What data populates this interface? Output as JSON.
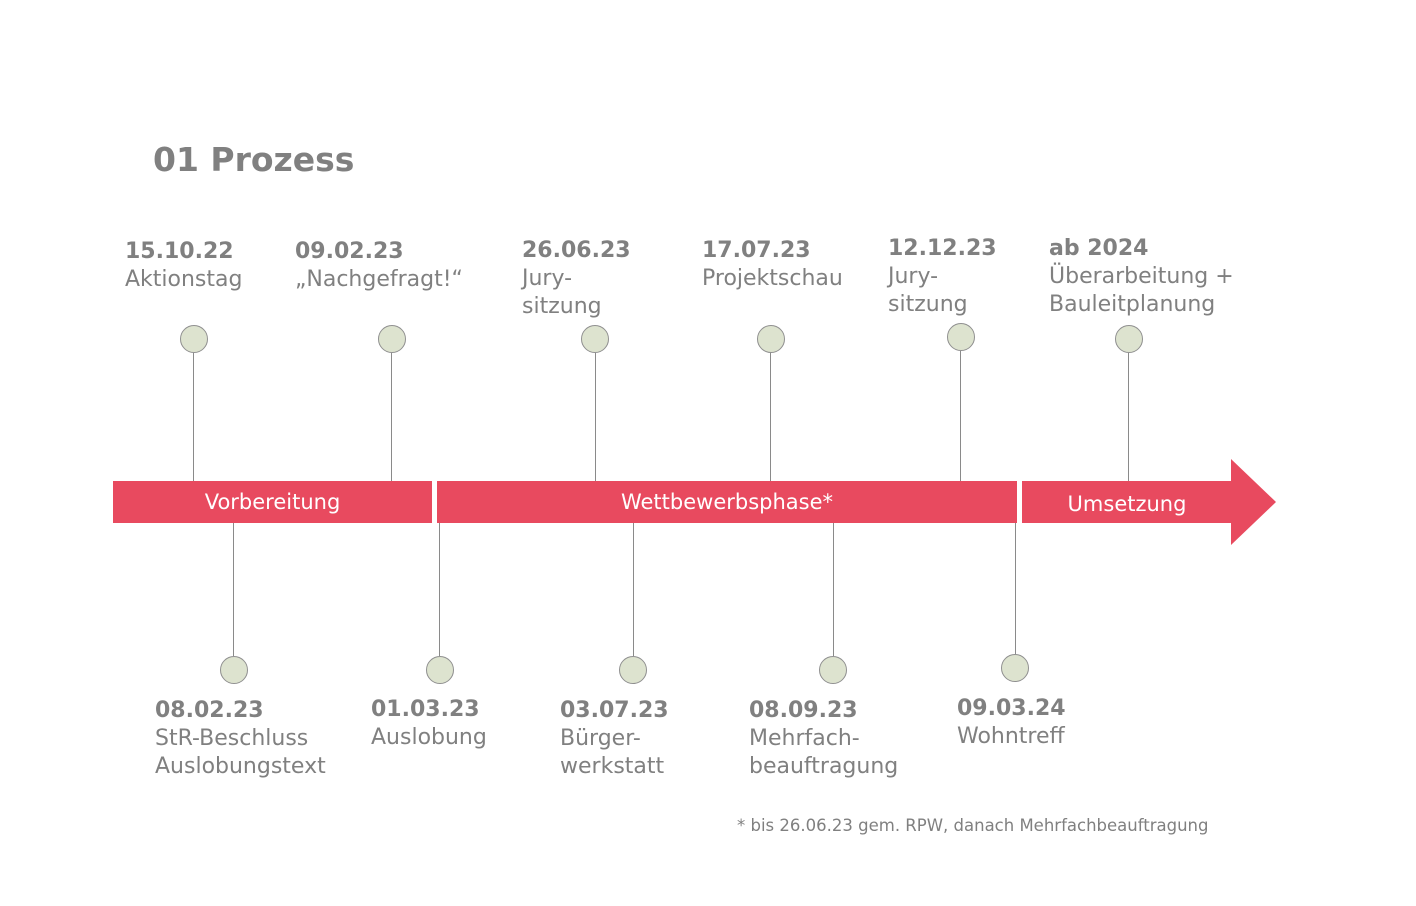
{
  "title": "01 Prozess",
  "phases": [
    {
      "label": "Vorbereitung"
    },
    {
      "label": "Wettbewerbsphase*"
    },
    {
      "label": "Umsetzung"
    }
  ],
  "milestones_top": [
    {
      "date": "15.10.22",
      "text": "Aktionstag"
    },
    {
      "date": "09.02.23",
      "text": "„Nachgefragt!“"
    },
    {
      "date": "26.06.23",
      "text": "Jury-\nsitzung"
    },
    {
      "date": "17.07.23",
      "text": "Projektschau"
    },
    {
      "date": "12.12.23",
      "text": "Jury-\nsitzung"
    },
    {
      "date": "ab 2024",
      "text": "Überarbeitung +\nBauleitplanung"
    }
  ],
  "milestones_bottom": [
    {
      "date": "08.02.23",
      "text": "StR-Beschluss\nAuslobungstext"
    },
    {
      "date": "01.03.23",
      "text": "Auslobung"
    },
    {
      "date": "03.07.23",
      "text": "Bürger-\nwerkstatt"
    },
    {
      "date": "08.09.23",
      "text": "Mehrfach-\nbeauftragung"
    },
    {
      "date": "09.03.24",
      "text": "Wohntreff"
    }
  ],
  "footnote": "* bis 26.06.23 gem. RPW, danach Mehrfachbeauftragung",
  "colors": {
    "accent": "#e84a5f",
    "dot_fill": "#dde3cf",
    "text": "#808080"
  }
}
